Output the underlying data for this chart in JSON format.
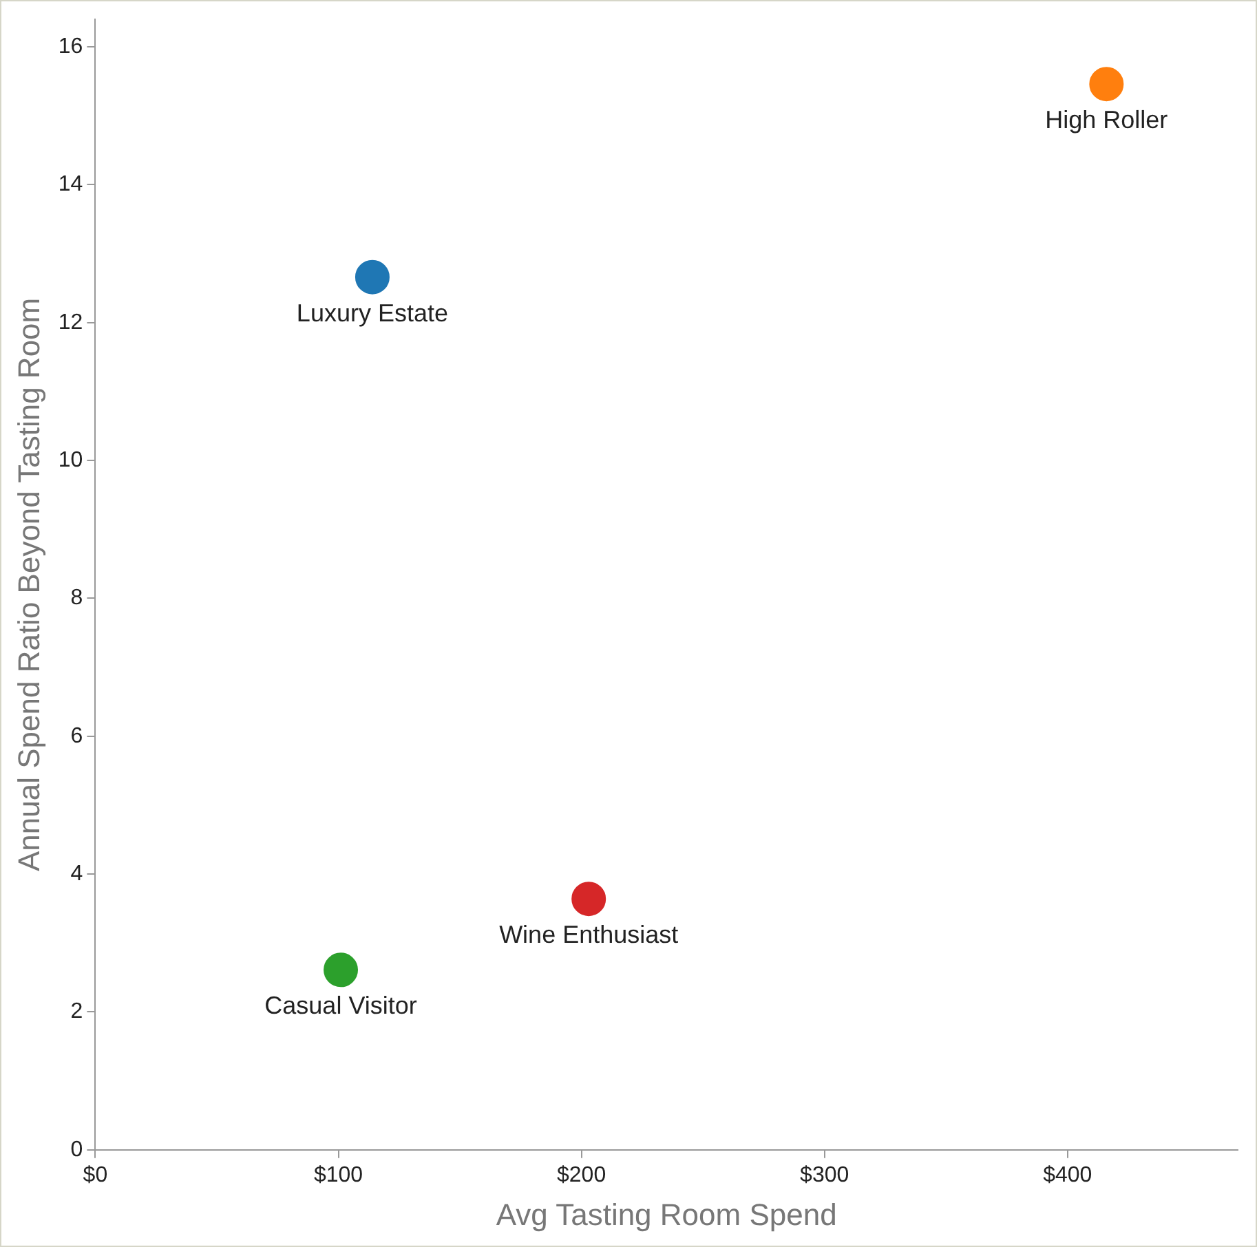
{
  "chart_data": {
    "type": "scatter",
    "xlabel": "Avg Tasting Room Spend",
    "ylabel": "Annual Spend Ratio Beyond Tasting Room",
    "xlim": [
      0,
      470
    ],
    "xticks": [
      {
        "value": 0,
        "label": "$0"
      },
      {
        "value": 100,
        "label": "$100"
      },
      {
        "value": 200,
        "label": "$200"
      },
      {
        "value": 300,
        "label": "$300"
      },
      {
        "value": 400,
        "label": "$400"
      }
    ],
    "ylim": [
      0,
      16.4
    ],
    "yticks": [
      0,
      2,
      4,
      6,
      8,
      10,
      12,
      14,
      16
    ],
    "grid": false,
    "legend": false,
    "marker": "circle",
    "series": [
      {
        "name": "High Roller",
        "color": "#ff7f0e",
        "x": [
          416
        ],
        "values": [
          15.46
        ]
      },
      {
        "name": "Luxury Estate",
        "color": "#1f77b4",
        "x": [
          114
        ],
        "values": [
          12.66
        ]
      },
      {
        "name": "Wine Enthusiast",
        "color": "#d62728",
        "x": [
          203
        ],
        "values": [
          3.64
        ]
      },
      {
        "name": "Casual Visitor",
        "color": "#2ca02c",
        "x": [
          101
        ],
        "values": [
          2.61
        ]
      }
    ]
  }
}
